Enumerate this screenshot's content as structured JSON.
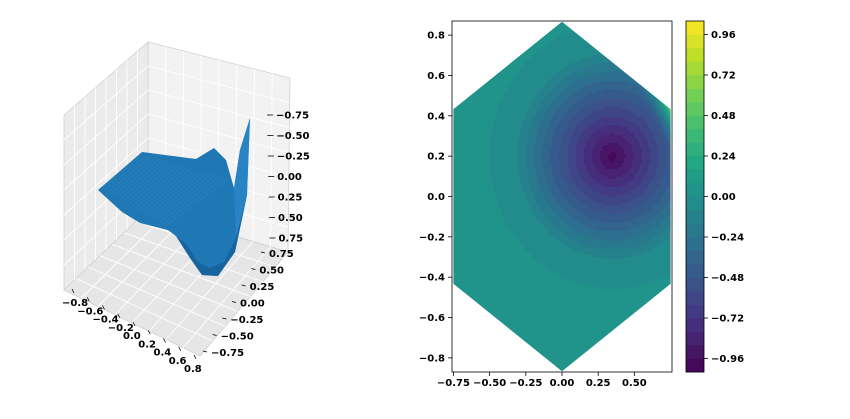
{
  "chart_data": [
    {
      "type": "surface3d",
      "title": "",
      "xlabel": "",
      "ylabel": "",
      "zlabel": "",
      "x_ticks": [
        "−0.8",
        "−0.6",
        "−0.4",
        "−0.2",
        "0.0",
        "0.2",
        "0.4",
        "0.6",
        "0.8"
      ],
      "y_ticks": [
        "−0.75",
        "−0.50",
        "−0.25",
        "0.00",
        "0.25",
        "0.50",
        "0.75"
      ],
      "z_ticks": [
        "−0.75",
        "−0.50",
        "−0.25",
        "0.00",
        "0.25",
        "0.50",
        "0.75"
      ],
      "xlim": [
        -0.8,
        0.8
      ],
      "ylim": [
        -0.75,
        0.75
      ],
      "zlim": [
        -0.85,
        0.85
      ],
      "surface_color": "#1f77b4",
      "grid": true
    },
    {
      "type": "contourf",
      "title": "",
      "xlabel": "",
      "ylabel": "",
      "x_ticks": [
        "−0.75",
        "−0.50",
        "−0.25",
        "0.00",
        "0.25",
        "0.50"
      ],
      "x_tick_values": [
        -0.75,
        -0.5,
        -0.25,
        0.0,
        0.25,
        0.5
      ],
      "y_ticks": [
        "−0.8",
        "−0.6",
        "−0.4",
        "−0.2",
        "0.0",
        "0.2",
        "0.4",
        "0.6",
        "0.8"
      ],
      "y_tick_values": [
        -0.8,
        -0.6,
        -0.4,
        -0.2,
        0.0,
        0.2,
        0.4,
        0.6,
        0.8
      ],
      "xlim": [
        -0.76,
        0.76
      ],
      "ylim": [
        -0.87,
        0.87
      ],
      "domain": "hexagon",
      "hexagon_vertices": [
        [
          0.0,
          0.866
        ],
        [
          0.75,
          0.433
        ],
        [
          0.75,
          -0.433
        ],
        [
          0.0,
          -0.866
        ],
        [
          -0.75,
          -0.433
        ],
        [
          -0.75,
          0.433
        ]
      ],
      "minimum_location": [
        0.35,
        0.2
      ],
      "colormap": "viridis",
      "colorbar_ticks": [
        "0.96",
        "0.72",
        "0.48",
        "0.24",
        "0.00",
        "−0.24",
        "−0.48",
        "−0.72",
        "−0.96"
      ],
      "colorbar_tick_values": [
        0.96,
        0.72,
        0.48,
        0.24,
        0.0,
        -0.24,
        -0.48,
        -0.72,
        -0.96
      ],
      "colorbar_range": [
        -1.04,
        1.04
      ],
      "level_step": 0.08
    }
  ]
}
